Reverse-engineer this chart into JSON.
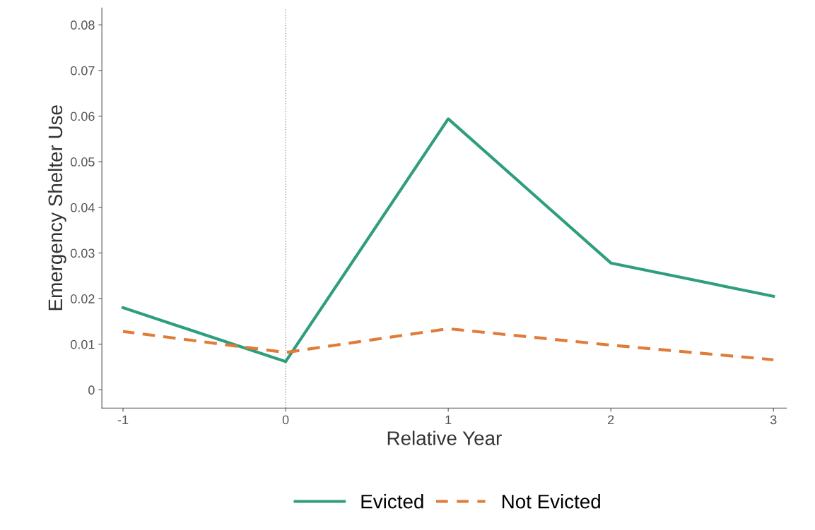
{
  "chart_data": {
    "type": "line",
    "xlabel": "Relative Year",
    "ylabel": "Emergency Shelter Use",
    "x": [
      -1,
      0,
      1,
      2,
      3
    ],
    "series": [
      {
        "name": "Evicted",
        "color": "#2e9e7e",
        "values": [
          0.018,
          0.0062,
          0.0594,
          0.0278,
          0.0205
        ],
        "line_style": "solid"
      },
      {
        "name": "Not Evicted",
        "color": "#e07b39",
        "values": [
          0.0128,
          0.0082,
          0.0134,
          0.0098,
          0.0066
        ],
        "line_style": "dashed"
      }
    ],
    "xlim": [
      -1.13,
      3.08
    ],
    "xticks": [
      -1,
      0,
      1,
      2,
      3
    ],
    "ylim": [
      -0.004,
      0.0837
    ],
    "yticks": [
      0,
      0.01,
      0.02,
      0.03,
      0.04,
      0.05,
      0.06,
      0.07,
      0.08
    ],
    "ref_lines": [
      {
        "axis": "x",
        "value": 0,
        "color": "#999999",
        "line_style": "dotted"
      }
    ],
    "grid": false,
    "legend": "bottom"
  }
}
